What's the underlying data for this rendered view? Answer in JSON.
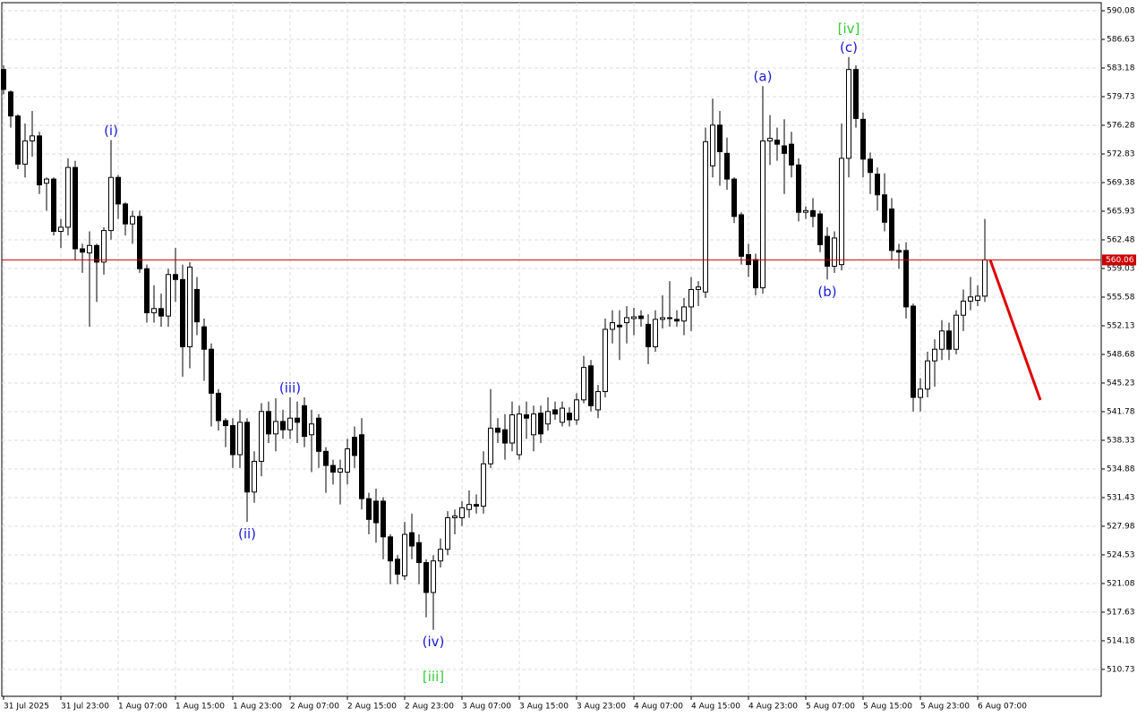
{
  "chart_data": {
    "type": "candlestick",
    "ylim": [
      507.49,
      591.05
    ],
    "xlim": [
      -0.25,
      153.25
    ],
    "yticks": [
      590.08,
      586.63,
      583.18,
      579.73,
      576.28,
      572.83,
      569.38,
      565.93,
      562.48,
      559.03,
      555.58,
      552.13,
      548.68,
      545.23,
      541.78,
      538.33,
      534.88,
      531.43,
      527.98,
      524.53,
      521.08,
      517.63,
      514.18,
      510.73
    ],
    "xticks": [
      {
        "value": 0,
        "label": "31 Jul 2025"
      },
      {
        "value": 8,
        "label": "31 Jul 23:00"
      },
      {
        "value": 16,
        "label": "1 Aug 07:00"
      },
      {
        "value": 24,
        "label": "1 Aug 15:00"
      },
      {
        "value": 32,
        "label": "1 Aug 23:00"
      },
      {
        "value": 40,
        "label": "2 Aug 07:00"
      },
      {
        "value": 48,
        "label": "2 Aug 15:00"
      },
      {
        "value": 56,
        "label": "2 Aug 23:00"
      },
      {
        "value": 64,
        "label": "3 Aug 07:00"
      },
      {
        "value": 72,
        "label": "3 Aug 15:00"
      },
      {
        "value": 80,
        "label": "3 Aug 23:00"
      },
      {
        "value": 88,
        "label": "4 Aug 07:00"
      },
      {
        "value": 96,
        "label": "4 Aug 15:00"
      },
      {
        "value": 104,
        "label": "4 Aug 23:00"
      },
      {
        "value": 112,
        "label": "5 Aug 07:00"
      },
      {
        "value": 120,
        "label": "5 Aug 15:00"
      },
      {
        "value": 128,
        "label": "5 Aug 23:00"
      },
      {
        "value": 136,
        "label": "6 Aug 07:00"
      }
    ],
    "grid": true,
    "up_color": "#ffffff",
    "down_color": "#000000",
    "open": [
      583,
      580.3,
      577.4,
      571.6,
      574.4,
      575,
      569.3,
      569.8,
      563.5,
      564,
      571.2,
      561.4,
      560.9,
      561.8,
      559.8,
      563.6,
      570,
      566.8,
      564.4,
      565.3,
      559,
      553.7,
      554.2,
      553.3,
      558.3,
      557.7,
      549.6,
      556.5,
      552,
      549.3,
      544,
      540.7,
      540.1,
      536.6,
      540.5,
      532.1,
      535.8,
      541.8,
      539.1,
      540.6,
      539.6,
      541,
      542.5,
      539,
      541,
      537,
      535.3,
      534.5,
      534.5,
      538.7,
      539,
      531.3,
      531,
      531,
      526.7,
      524,
      522,
      527.2,
      526,
      523.6,
      520,
      523.8,
      525.2,
      529,
      529,
      530,
      530.6,
      530.4,
      535.5,
      539.8,
      539.6,
      538,
      536.6,
      541.4,
      539,
      541.6,
      540.3,
      542,
      540.5,
      541.6,
      540.8,
      543.2,
      547.3,
      542,
      544.2,
      551.7,
      552.2,
      552.5,
      553,
      553.3,
      552.3,
      549.6,
      552.9,
      553.1,
      552.9,
      552.7,
      554.4,
      556.5,
      556.2,
      571.4,
      576.3,
      572.9,
      569.8,
      565.5,
      560.7,
      560.1,
      556.7,
      574.4,
      574.5,
      573.8,
      574,
      571.5,
      565.8,
      566,
      565.6,
      562.9,
      559.3,
      559.5,
      572.3,
      583,
      577,
      572.2,
      570.4,
      567.9,
      566.2,
      561.2,
      561.2,
      554.5,
      543.5,
      544.5,
      547.9,
      549.3,
      551.5,
      549.3,
      553.4,
      555.1,
      555.2,
      555.7
    ],
    "high": [
      583.5,
      580.5,
      577.6,
      576.5,
      578,
      575.5,
      570,
      570,
      565,
      572.3,
      572,
      562,
      563.5,
      562,
      564,
      574.5,
      570.3,
      567,
      566,
      566,
      559.5,
      557,
      556,
      559,
      561.5,
      559.5,
      559.8,
      558,
      553,
      550,
      544.5,
      541,
      541,
      542,
      541,
      537,
      542.8,
      543,
      543.4,
      542,
      543.5,
      543,
      543.5,
      542,
      541.5,
      537.5,
      536,
      536,
      538.5,
      540,
      541,
      532,
      532.5,
      531.5,
      527,
      524.5,
      528.5,
      529.5,
      527,
      524,
      524.5,
      526.5,
      529.8,
      530,
      531,
      532.3,
      531.8,
      537,
      544.5,
      541,
      541.5,
      543,
      542.5,
      543,
      542.5,
      542.5,
      543.5,
      543,
      543,
      542.3,
      544,
      548.5,
      548,
      545,
      553,
      554,
      554,
      554.5,
      554.3,
      554,
      553.5,
      554,
      555.8,
      557.5,
      554,
      555.5,
      558,
      557.5,
      576,
      579.5,
      578,
      574.8,
      570,
      565.8,
      562,
      560.8,
      581,
      577.5,
      576,
      577,
      575.5,
      572.3,
      566.5,
      567.5,
      566,
      564,
      563.5,
      576.5,
      584.5,
      583.5,
      577.8,
      573,
      571.2,
      570.5,
      567.5,
      562,
      562.2,
      554.8,
      545.8,
      549,
      550.5,
      552.8,
      552.5,
      554,
      556.5,
      558,
      557,
      565
    ],
    "low": [
      580,
      576,
      571,
      570,
      572.5,
      568,
      566,
      563,
      561.5,
      563,
      560,
      558.5,
      552,
      555,
      558.3,
      562.5,
      565,
      563,
      562,
      558.5,
      552.5,
      552.5,
      552,
      552,
      555,
      546,
      547,
      551,
      545.5,
      540,
      539.5,
      537.5,
      535,
      535,
      528.5,
      530.8,
      534,
      538,
      537,
      538.5,
      538.5,
      538,
      537.5,
      534.5,
      535,
      532,
      533,
      530.6,
      533,
      535,
      530,
      527,
      526,
      524,
      521,
      521,
      521.5,
      524,
      521,
      517,
      515.5,
      523,
      524.5,
      527,
      528,
      529,
      529.5,
      529.5,
      535,
      538,
      536,
      537,
      536,
      538.5,
      537,
      538,
      539.5,
      540.8,
      540,
      540,
      540.2,
      542.8,
      541.8,
      541,
      543.5,
      550,
      548,
      550,
      551,
      552,
      547.5,
      549,
      551.8,
      552,
      552,
      551,
      551.5,
      554.5,
      555.5,
      570,
      569,
      568.5,
      564.5,
      559.5,
      558,
      555.8,
      556,
      571.5,
      572,
      568,
      570,
      564.7,
      565,
      564,
      561,
      557.7,
      558.5,
      558.8,
      570,
      576,
      570,
      568,
      566,
      563.5,
      560,
      559,
      553,
      541.8,
      541.8,
      543.5,
      544.8,
      548,
      548,
      548.7,
      551.5,
      554,
      554.5,
      555
    ],
    "close": [
      580.6,
      577.4,
      571.6,
      574.4,
      575,
      569.1,
      569.8,
      563.5,
      564,
      571.2,
      561.4,
      561,
      561.8,
      559.8,
      563.6,
      570,
      566.8,
      564.4,
      565.3,
      559,
      553.7,
      554.2,
      553.3,
      558.3,
      557.7,
      549.6,
      559.2,
      552.6,
      549.3,
      544,
      540.7,
      540.1,
      536.6,
      540.5,
      532.1,
      535.8,
      541.8,
      539.1,
      540.6,
      539.6,
      541,
      540.5,
      538.8,
      540.3,
      537,
      535.3,
      534.5,
      534.9,
      537.3,
      536.5,
      531.3,
      528.8,
      528.4,
      526.7,
      523.8,
      522.2,
      527,
      525.6,
      523.6,
      520,
      523.8,
      525.2,
      529,
      529.2,
      530.2,
      530.6,
      530.4,
      535.5,
      539.8,
      539.3,
      538,
      541.4,
      541.5,
      541,
      541.5,
      539.1,
      541.8,
      541.5,
      542.2,
      540.8,
      543.2,
      547.1,
      542.5,
      544.2,
      551.7,
      552.5,
      552,
      553.1,
      553.2,
      553,
      549.6,
      552.9,
      553.1,
      553,
      552.7,
      554.4,
      556.5,
      556.8,
      574.3,
      576.3,
      573.1,
      569.8,
      565.3,
      560.5,
      559.5,
      556.7,
      574.4,
      574.7,
      574,
      572.9,
      571.5,
      565.8,
      566,
      565.3,
      561.9,
      559.3,
      562.7,
      572.3,
      583,
      577.1,
      572.2,
      570.6,
      567.9,
      564.6,
      561.2,
      561,
      554.4,
      543.5,
      544.5,
      547.9,
      549.3,
      551.5,
      549.3,
      553.4,
      555.1,
      555.6,
      555.7,
      560.06
    ],
    "current_price": 560.06,
    "current_price_color": "#cc0000",
    "forecast": {
      "x": [
        137.75,
        144.75
      ],
      "y": [
        560.06,
        543.18
      ],
      "color": "#e00000"
    },
    "wave_labels": [
      {
        "text": "(i)",
        "index": 15,
        "side": "above",
        "color": "#1a1ad6"
      },
      {
        "text": "(ii)",
        "index": 34,
        "side": "below",
        "color": "#1a1ad6"
      },
      {
        "text": "(iii)",
        "index": 40,
        "side": "above",
        "color": "#1a1ad6"
      },
      {
        "text": "(iv)",
        "index": 60,
        "side": "below",
        "color": "#1a1ad6"
      },
      {
        "text": "[iii]",
        "index": 60,
        "side": "below",
        "color": "#32cd32"
      },
      {
        "text": "(a)",
        "index": 106,
        "side": "above",
        "color": "#1a1ad6"
      },
      {
        "text": "(b)",
        "index": 115,
        "side": "below",
        "color": "#1a1ad6"
      },
      {
        "text": "(c)",
        "index": 118,
        "side": "above",
        "color": "#1a1ad6"
      },
      {
        "text": "[iv]",
        "index": 118,
        "side": "above",
        "color": "#32cd32"
      }
    ]
  }
}
